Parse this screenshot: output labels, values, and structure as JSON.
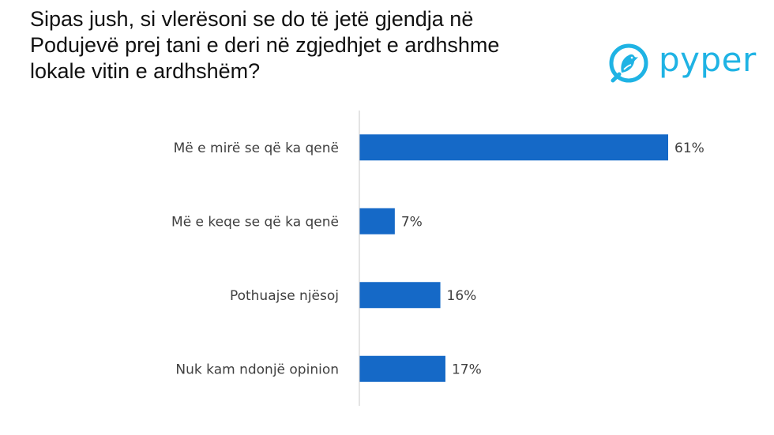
{
  "chart_data": {
    "type": "bar",
    "orientation": "horizontal",
    "title_lines": [
      "Sipas jush, si vlerësoni se do të jetë gjendja në",
      "Podujevë prej tani e deri në zgjedhjet e ardhshme",
      "lokale vitin e ardhshëm?"
    ],
    "categories": [
      "Më e mirë se që ka qenë",
      "Më e keqe se që ka qenë",
      "Pothuajse njësoj",
      "Nuk kam ndonjë opinion"
    ],
    "values": [
      61,
      7,
      16,
      17
    ],
    "value_labels": [
      "61%",
      "7%",
      "16%",
      "17%"
    ],
    "xlim": [
      0,
      65
    ],
    "grid": false,
    "legend": "none",
    "bar_color": "#1569c7",
    "axis_color": "#c8c8c8"
  },
  "brand": {
    "name": "pyper",
    "icon": "bird-icon",
    "color": "#1fb3e4"
  }
}
